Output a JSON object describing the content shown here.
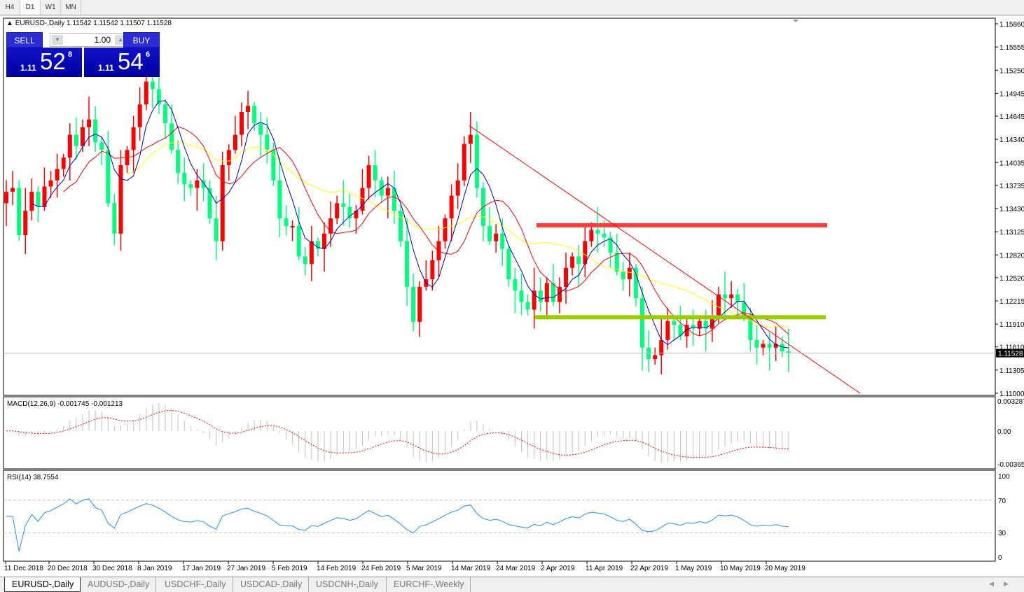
{
  "timeframes": [
    "H4",
    "D1",
    "W1",
    "MN"
  ],
  "active_timeframe": "D1",
  "chart_header": {
    "symbol": "EURUSD-,Daily",
    "ohlc": "1.11542 1.11542 1.11507 1.11528"
  },
  "trade_panel": {
    "sell_label": "SELL",
    "buy_label": "BUY",
    "lot": "1.00",
    "sell_prefix": "1.11",
    "sell_big": "52",
    "sell_sup": "8",
    "buy_prefix": "1.11",
    "buy_big": "54",
    "buy_sup": "6"
  },
  "indicators": {
    "macd_label": "MACD(12,26,9) -0.001745 -0.001213",
    "rsi_label": "RSI(14) 38.7554"
  },
  "colors": {
    "bull": "#ff0000",
    "bear": "#00ff7f",
    "ma_fast": "#0000c8",
    "ma_mid": "#ff0000",
    "ma_slow": "#ffff00",
    "resistance": "#ff3b3b",
    "support": "#99cc00",
    "rsi": "#1e90ff"
  },
  "chart_data": {
    "type": "candlestick",
    "symbol": "EURUSD-",
    "current_price": "1.11528",
    "price_ticks": [
      "1.15860",
      "1.15555",
      "1.15250",
      "1.14945",
      "1.14645",
      "1.14340",
      "1.14035",
      "1.13735",
      "1.13430",
      "1.13125",
      "1.12820",
      "1.12520",
      "1.12215",
      "1.11910",
      "1.11610",
      "1.11305",
      "1.11000"
    ],
    "ylim": [
      1.11,
      1.1586
    ],
    "date_ticks": [
      "11 Dec 2018",
      "20 Dec 2018",
      "30 Dec 2018",
      "8 Jan 2019",
      "17 Jan 2019",
      "27 Jan 2019",
      "5 Feb 2019",
      "14 Feb 2019",
      "24 Feb 2019",
      "5 Mar 2019",
      "14 Mar 2019",
      "24 Mar 2019",
      "2 Apr 2019",
      "11 Apr 2019",
      "22 Apr 2019",
      "1 May 2019",
      "10 May 2019",
      "20 May 2019"
    ],
    "first_open": 1.135,
    "close": [
      1.1365,
      1.137,
      1.1308,
      1.134,
      1.1365,
      1.1345,
      1.1372,
      1.138,
      1.1395,
      1.141,
      1.144,
      1.1425,
      1.145,
      1.146,
      1.143,
      1.142,
      1.135,
      1.131,
      1.14,
      1.142,
      1.145,
      1.148,
      1.151,
      1.15,
      1.148,
      1.1455,
      1.142,
      1.139,
      1.1375,
      1.137,
      1.138,
      1.137,
      1.133,
      1.13,
      1.14,
      1.142,
      1.144,
      1.147,
      1.1478,
      1.1455,
      1.144,
      1.142,
      1.138,
      1.133,
      1.132,
      1.132,
      1.128,
      1.127,
      1.13,
      1.129,
      1.131,
      1.133,
      1.135,
      1.1345,
      1.133,
      1.134,
      1.137,
      1.14,
      1.138,
      1.136,
      1.137,
      1.134,
      1.13,
      1.124,
      1.1194,
      1.124,
      1.125,
      1.1275,
      1.13,
      1.133,
      1.136,
      1.138,
      1.1428,
      1.144,
      1.137,
      1.132,
      1.13,
      1.131,
      1.129,
      1.125,
      1.1235,
      1.122,
      1.121,
      1.1235,
      1.122,
      1.1245,
      1.122,
      1.124,
      1.1265,
      1.128,
      1.127,
      1.13,
      1.1315,
      1.131,
      1.1305,
      1.1285,
      1.126,
      1.125,
      1.1265,
      1.1225,
      1.116,
      1.1145,
      1.115,
      1.117,
      1.1195,
      1.119,
      1.1175,
      1.119,
      1.1185,
      1.1195,
      1.1185,
      1.12,
      1.123,
      1.1225,
      1.123,
      1.122,
      1.12,
      1.117,
      1.116,
      1.1165,
      1.116,
      1.1165,
      1.1155,
      1.11528
    ],
    "moving_averages": [
      {
        "type": "SMA",
        "period": 5
      },
      {
        "type": "SMA",
        "period": 10
      },
      {
        "type": "SMA",
        "period": 20
      }
    ],
    "trendline": {
      "from": {
        "date": "13 Mar 2019",
        "price": 1.1452
      },
      "to": {
        "date": "31 May 2019",
        "price": 1.11
      }
    },
    "resistance_level": 1.1321,
    "support_level": 1.12,
    "macd": {
      "params": "12,26,9",
      "ylim": [
        -0.003659,
        0.003287
      ],
      "ticks": [
        "0.003287",
        "0.00",
        "-0.003659"
      ]
    },
    "rsi": {
      "period": 14,
      "levels": [
        70,
        30
      ],
      "ylim": [
        0,
        100
      ],
      "ticks": [
        "100",
        "70",
        "30",
        "0"
      ]
    }
  },
  "symbol_tabs": [
    "EURUSD-,Daily",
    "AUDUSD-,Daily",
    "USDCHF-,Daily",
    "USDCAD-,Daily",
    "USDCNH-,Daily",
    "EURCHF-,Weekly"
  ],
  "active_symbol_tab": "EURUSD-,Daily"
}
